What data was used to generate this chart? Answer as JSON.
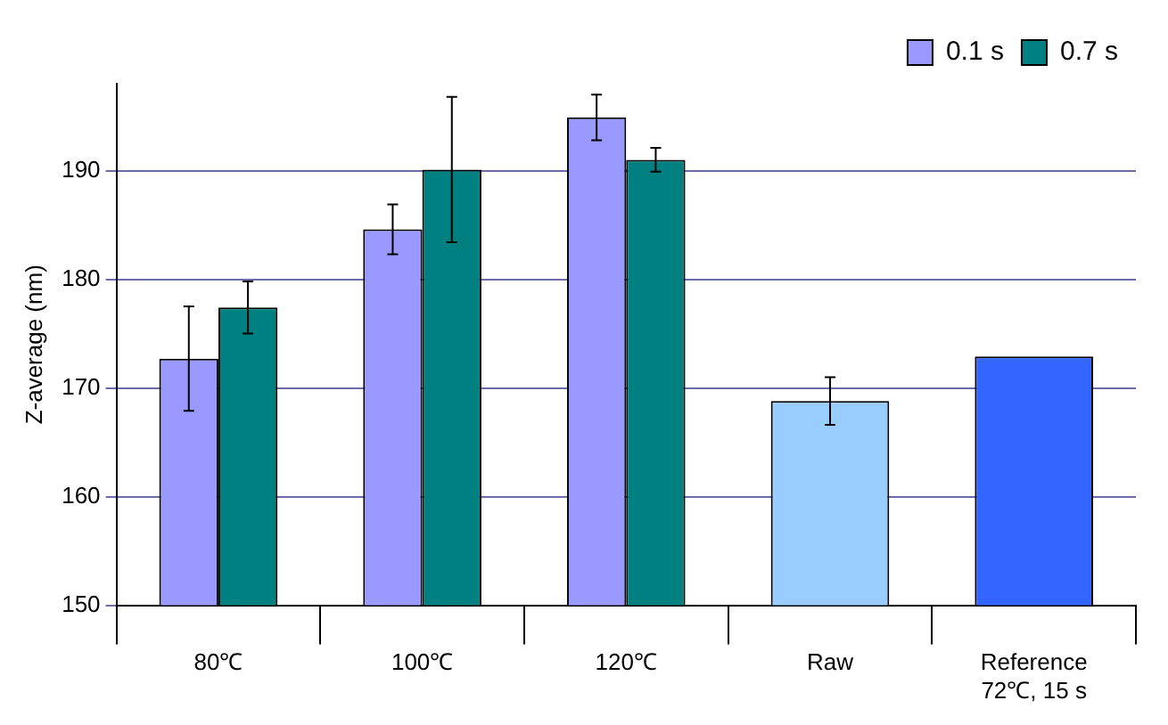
{
  "chart_data": {
    "type": "bar",
    "ylabel": "Z-average (nm)",
    "categories": [
      "80℃",
      "100℃",
      "120℃",
      "Raw",
      "Reference\n72℃, 15 s"
    ],
    "series": [
      {
        "name": "0.1 s",
        "color": "#9999ff",
        "values": [
          172.7,
          184.6,
          194.9,
          null,
          null
        ],
        "errors": [
          4.8,
          2.3,
          2.1,
          null,
          null
        ]
      },
      {
        "name": "0.7 s",
        "color": "#008080",
        "values": [
          177.4,
          190.1,
          191.0,
          null,
          null
        ],
        "errors": [
          2.4,
          6.7,
          1.1,
          null,
          null
        ]
      },
      {
        "colors": [
          "#99ccff",
          "#99ccff",
          "#99ccff",
          "#99ccff",
          "#3366ff"
        ],
        "values": [
          null,
          null,
          null,
          168.8,
          172.9
        ],
        "errors": [
          null,
          null,
          null,
          2.2,
          null
        ]
      }
    ],
    "ylim": [
      150,
      198
    ],
    "yticks": [
      150,
      160,
      170,
      180,
      190
    ],
    "grid": "y",
    "legend": "top right"
  }
}
